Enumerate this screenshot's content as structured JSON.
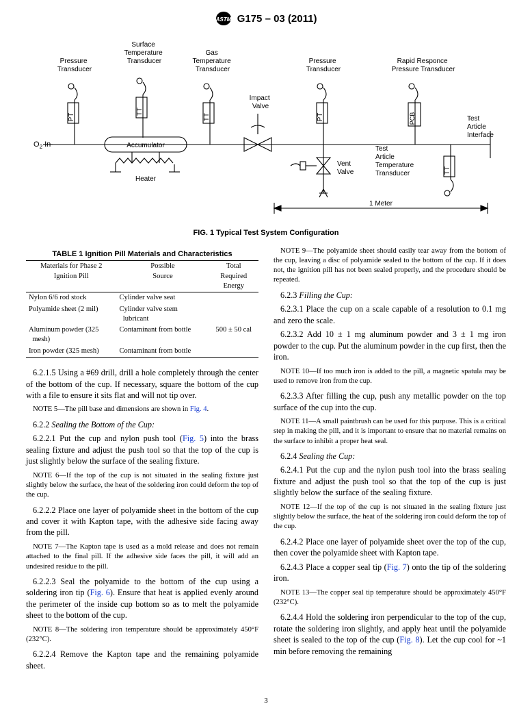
{
  "header": {
    "designation": "G175 – 03 (2011)"
  },
  "figure": {
    "caption": "FIG. 1 Typical Test System Configuration",
    "labels": {
      "o2": "O",
      "o2sub": "2",
      "o2in": " In",
      "pt1": "Pressure\nTransducer",
      "st": "Surface\nTemperature\nTransducer",
      "gt": "Gas\nTemperature\nTransducer",
      "iv": "Impact\nValve",
      "pt2": "Pressure\nTransducer",
      "rrt": "Rapid Responce\nPressure Transducer",
      "accum": "Accumulator",
      "heater": "Heater",
      "vent": "Vent\nValve",
      "tat": "Test\nArticle\nTemperature\nTransducer",
      "tai": "Test\nArticle\nInterface",
      "one_m": "1 Meter",
      "pt_box": "PT",
      "tt_box": "TT",
      "pcb_box": "PCB"
    }
  },
  "table": {
    "title": "TABLE 1 Ignition Pill Materials and Characteristics",
    "columns": [
      "Materials for Phase 2\nIgnition Pill",
      "Possible\nSource",
      "Total\nRequired\nEnergy"
    ],
    "rows": [
      [
        "Nylon 6/6 rod stock",
        "Cylinder valve seat",
        ""
      ],
      [
        "Polyamide sheet (2 mil)",
        "Cylinder valve stem\nlubricant",
        ""
      ],
      [
        "Aluminum powder (325\nmesh)",
        "Contaminant from bottle",
        "500 ± 50 cal"
      ],
      [
        "Iron powder (325 mesh)",
        "Contaminant from bottle",
        ""
      ]
    ]
  },
  "left_col": {
    "p1": "6.2.1.5 Using a #69 drill, drill a hole completely through the center of the bottom of the cup. If necessary, square the bottom of the cup with a file to ensure it sits flat and will not tip over.",
    "note5": "N<span class=\"small-caps\">OTE</span> 5—The pill base and dimensions are shown in <span class=\"link\">Fig. 4</span>.",
    "h622": "6.2.2 <span class=\"ital\">Sealing the Bottom of the Cup:</span>",
    "p6221": "6.2.2.1 Put the cup and nylon push tool (<span class=\"link\">Fig. 5</span>) into the brass sealing fixture and adjust the push tool so that the top of the cup is just slightly below the surface of the sealing fixture.",
    "note6": "N<span class=\"small-caps\">OTE</span> 6—If the top of the cup is not situated in the sealing fixture just slightly below the surface, the heat of the soldering iron could deform the top of the cup.",
    "p6222": "6.2.2.2 Place one layer of polyamide sheet in the bottom of the cup and cover it with Kapton tape, with the adhesive side facing away from the pill.",
    "note7": "N<span class=\"small-caps\">OTE</span> 7—The Kapton tape is used as a mold release and does not remain attached to the final pill. If the adhesive side faces the pill, it will add an undesired residue to the pill.",
    "p6223": "6.2.2.3 Seal the polyamide to the bottom of the cup using a soldering iron tip (<span class=\"link\">Fig. 6</span>). Ensure that heat is applied evenly around the perimeter of the inside cup bottom so as to melt the polyamide sheet to the bottom of the cup.",
    "note8": "N<span class=\"small-caps\">OTE</span> 8—The soldering iron temperature should be approximately 450°F (232°C).",
    "p6224": "6.2.2.4 Remove the Kapton tape and the remaining poly­amide sheet."
  },
  "right_col": {
    "note9": "N<span class=\"small-caps\">OTE</span> 9—The polyamide sheet should easily tear away from the bottom of the cup, leaving a disc of polyamide sealed to the bottom of the cup. If it does not, the ignition pill has not been sealed properly, and the procedure should be repeated.",
    "h623": "6.2.3 <span class=\"ital\">Filling the Cup:</span>",
    "p6231": "6.2.3.1 Place the cup on a scale capable of a resolution to 0.1 mg and zero the scale.",
    "p6232": "6.2.3.2 Add 10 ± 1 mg aluminum powder and 3 ± 1 mg iron powder to the cup. Put the aluminum powder in the cup first, then the iron.",
    "note10": "N<span class=\"small-caps\">OTE</span> 10—If too much iron is added to the pill, a magnetic spatula may be used to remove iron from the cup.",
    "p6233": "6.2.3.3 After filling the cup, push any metallic powder on the top surface of the cup into the cup.",
    "note11": "N<span class=\"small-caps\">OTE</span> 11—A small paintbrush can be used for this purpose. This is a critical step in making the pill, and it is important to ensure that no material remains on the surface to inhibit a proper heat seal.",
    "h624": "6.2.4 <span class=\"ital\">Sealing the Cup:</span>",
    "p6241": "6.2.4.1 Put the cup and the nylon push tool into the brass sealing fixture and adjust the push tool so that the top of the cup is just slightly below the surface of the sealing fixture.",
    "note12": "N<span class=\"small-caps\">OTE</span> 12—If the top of the cup is not situated in the sealing fixture just slightly below the surface, the heat of the soldering iron could deform the top of the cup.",
    "p6242": "6.2.4.2 Place one layer of polyamide sheet over the top of the cup, then cover the polyamide sheet with Kapton tape.",
    "p6243": "6.2.4.3 Place a copper seal tip (<span class=\"link\">Fig. 7</span>) onto the tip of the soldering iron.",
    "note13": "N<span class=\"small-caps\">OTE</span> 13—The copper seal tip temperature should be approximately 450°F (232°C).",
    "p6244": "6.2.4.4 Hold the soldering iron perpendicular to the top of the cup, rotate the soldering iron slightly, and apply heat until the polyamide sheet is sealed to the top of the cup (<span class=\"link\">Fig. 8</span>). Let the cup cool for ~1 min before removing the remaining"
  },
  "page_number": "3"
}
